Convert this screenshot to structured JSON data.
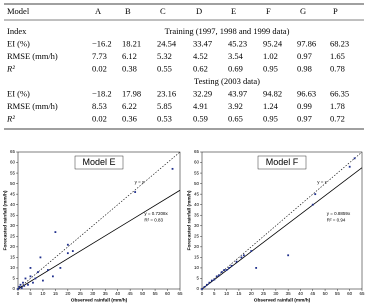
{
  "table": {
    "header": [
      "Model",
      "A",
      "B",
      "C",
      "D",
      "E",
      "F",
      "G",
      "P"
    ],
    "sections": [
      {
        "label": "Index",
        "title": "Training (1997, 1998 and 1999 data)",
        "rows": [
          [
            "EI (%)",
            "−16.2",
            "18.21",
            "24.54",
            "33.47",
            "45.23",
            "95.24",
            "97.86",
            "68.23"
          ],
          [
            "RMSE (mm/h)",
            "7.73",
            "6.12",
            "5.32",
            "4.52",
            "3.54",
            "1.02",
            "0.97",
            "1.65"
          ],
          [
            "R²",
            "0.02",
            "0.38",
            "0.55",
            "0.62",
            "0.69",
            "0.95",
            "0.98",
            "0.78"
          ]
        ]
      },
      {
        "title": "Testing (2003 data)",
        "rows": [
          [
            "EI (%)",
            "−18.2",
            "17.98",
            "23.16",
            "32.29",
            "43.97",
            "94.82",
            "96.63",
            "66.35"
          ],
          [
            "RMSE (mm/h)",
            "8.53",
            "6.22",
            "5.85",
            "4.91",
            "3.92",
            "1.24",
            "0.99",
            "1.78"
          ],
          [
            "R²",
            "0.02",
            "0.36",
            "0.53",
            "0.59",
            "0.65",
            "0.95",
            "0.97",
            "0.72"
          ]
        ]
      }
    ]
  },
  "chart_data": [
    {
      "type": "scatter",
      "title": "Model E",
      "xlabel": "Observed rainfall (mm/h)",
      "ylabel": "Forecasted rainfall (mm/h)",
      "x": [
        0,
        0.5,
        1,
        1.5,
        2,
        2.5,
        3,
        4,
        5,
        6,
        7,
        8,
        10,
        12,
        14,
        17,
        20,
        22,
        15,
        20,
        47,
        62,
        5,
        9
      ],
      "values": [
        0,
        1,
        2,
        0.5,
        3,
        1.5,
        5,
        2,
        6,
        3,
        5,
        8,
        4,
        9,
        6,
        10,
        21,
        18,
        27,
        17,
        46,
        57,
        10,
        15
      ],
      "color": "#1f2f8c",
      "xlim": [
        0,
        65
      ],
      "ylim": [
        0,
        65
      ],
      "xticks": [
        0,
        5,
        10,
        15,
        20,
        25,
        30,
        35,
        40,
        45,
        50,
        55,
        60,
        65
      ],
      "yticks": [
        0,
        5,
        10,
        15,
        20,
        25,
        30,
        35,
        40,
        45,
        50,
        55,
        60,
        65
      ],
      "identity_label": "y = x",
      "fit": {
        "slope": 0.7208,
        "label": "y = 0.7208x"
      },
      "r2_label": "R² = 0.83"
    },
    {
      "type": "scatter",
      "title": "Model F",
      "xlabel": "Observed rainfall (mm/h)",
      "ylabel": "Forecasted rainfall (mm/h)",
      "x": [
        0,
        1,
        2,
        3,
        4,
        5,
        6,
        7,
        8,
        9,
        10,
        11,
        12,
        14,
        16,
        17,
        20,
        22,
        35,
        45,
        46,
        60,
        62
      ],
      "values": [
        0,
        1,
        2,
        3,
        4,
        4.5,
        6,
        6.5,
        8,
        9,
        9,
        10,
        11,
        13,
        15,
        16,
        18,
        10,
        16,
        40,
        45,
        58,
        62
      ],
      "color": "#1f2f8c",
      "xlim": [
        0,
        65
      ],
      "ylim": [
        0,
        65
      ],
      "xticks": [
        0,
        5,
        10,
        15,
        20,
        25,
        30,
        35,
        40,
        45,
        50,
        55,
        60,
        65
      ],
      "yticks": [
        0,
        5,
        10,
        15,
        20,
        25,
        30,
        35,
        40,
        45,
        50,
        55,
        60,
        65
      ],
      "identity_label": "y = x",
      "fit": {
        "slope": 0.8859,
        "label": "y = 0.8859x"
      },
      "r2_label": "R² = 0.94"
    }
  ]
}
